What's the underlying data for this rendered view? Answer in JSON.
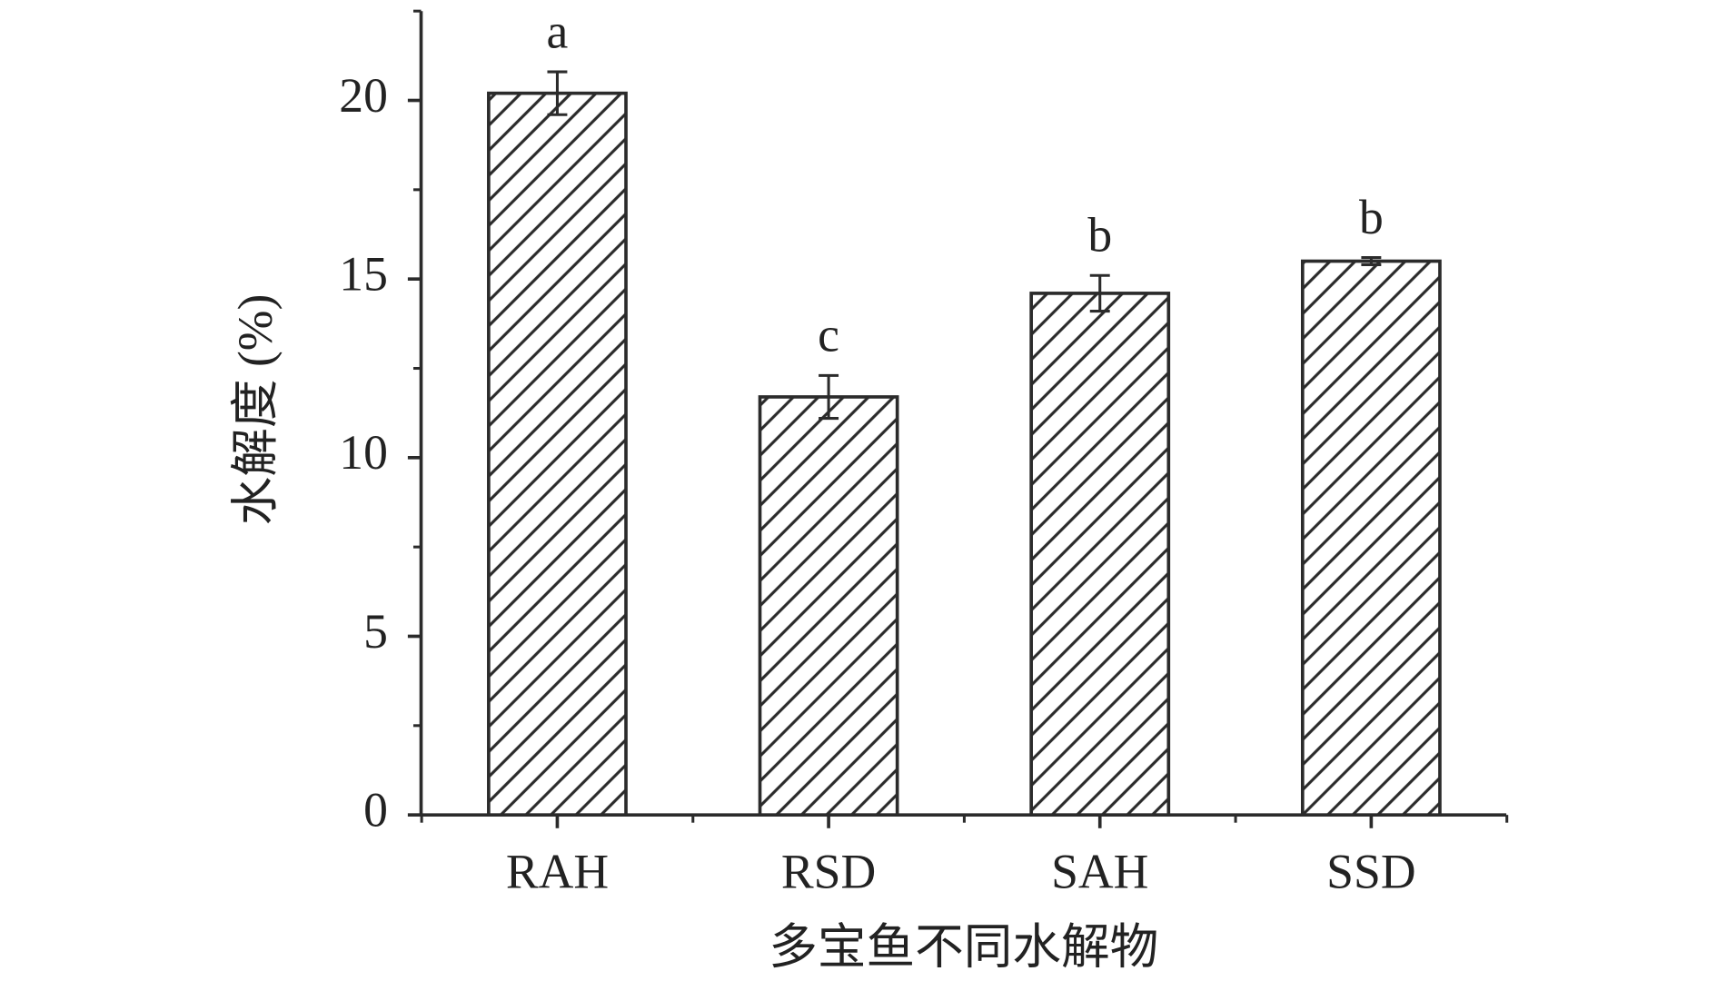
{
  "chart_data": {
    "type": "bar",
    "x_label": "多宝鱼不同水解物",
    "y_label": "水解度 (%)",
    "categories": [
      "RAH",
      "RSD",
      "SAH",
      "SSD"
    ],
    "values": [
      20.2,
      11.7,
      14.6,
      15.5
    ],
    "errors": [
      0.6,
      0.6,
      0.5,
      0.1
    ],
    "significance": [
      "a",
      "c",
      "b",
      "b"
    ],
    "color": "#2b2b2b",
    "ylim": [
      0,
      22.5
    ],
    "yticks": [
      0,
      5,
      10,
      15,
      20
    ],
    "yminorticks": [
      2.5,
      7.5,
      12.5,
      17.5,
      22.5
    ]
  }
}
